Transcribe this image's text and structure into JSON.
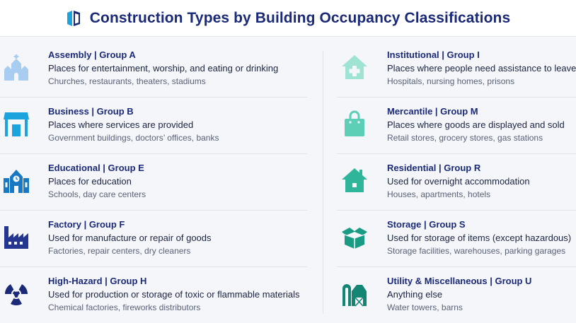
{
  "header": {
    "title": "Construction Types by Building Occupancy Classifications"
  },
  "left": [
    {
      "title": "Assembly | Group A",
      "description": "Places for entertainment, worship, and eating or drinking",
      "examples": "Churches, restaurants, theaters, stadiums",
      "icon": "church-icon",
      "color": "#a9cdf0"
    },
    {
      "title": "Business | Group B",
      "description": "Places where services are provided",
      "examples": "Government buildings, doctors’ offices, banks",
      "icon": "storefront-icon",
      "color": "#1aa3dc"
    },
    {
      "title": "Educational | Group E",
      "description": "Places for education",
      "examples": "Schools, day care centers",
      "icon": "school-icon",
      "color": "#1878c2"
    },
    {
      "title": "Factory | Group F",
      "description": "Used for manufacture or repair of goods",
      "examples": "Factories, repair centers, dry cleaners",
      "icon": "factory-icon",
      "color": "#24368f"
    },
    {
      "title": "High-Hazard | Group H",
      "description": "Used for production or storage of toxic or flammable materials",
      "examples": "Chemical factories, fireworks distributors",
      "icon": "radiation-icon",
      "color": "#1b2a78"
    }
  ],
  "right": [
    {
      "title": "Institutional | Group I",
      "description": "Places where people need assistance to leave",
      "examples": "Hospitals, nursing homes, prisons",
      "icon": "hospital-icon",
      "color": "#9fe3d4"
    },
    {
      "title": "Mercantile | Group M",
      "description": "Places where goods are displayed and sold",
      "examples": "Retail stores, grocery stores, gas stations",
      "icon": "shopping-bag-icon",
      "color": "#5ccfb6"
    },
    {
      "title": "Residential | Group R",
      "description": "Used for overnight accommodation",
      "examples": "Houses, apartments, hotels",
      "icon": "house-icon",
      "color": "#2fb59a"
    },
    {
      "title": "Storage | Group S",
      "description": "Used for storage of items (except hazardous)",
      "examples": "Storage facilities, warehouses, parking garages",
      "icon": "open-box-icon",
      "color": "#1a9c84"
    },
    {
      "title": "Utility & Miscellaneous | Group U",
      "description": "Anything else",
      "examples": "Water towers, barns",
      "icon": "barn-icon",
      "color": "#138673"
    }
  ]
}
